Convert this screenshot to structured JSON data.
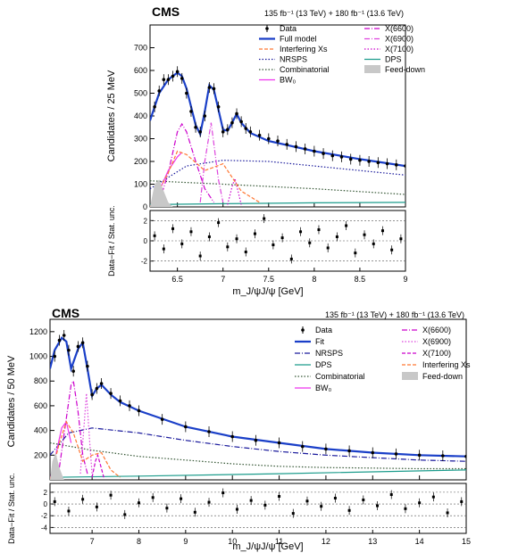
{
  "chart_data": [
    {
      "type": "line",
      "experiment": "CMS",
      "lumi_text": "135 fb⁻¹ (13 TeV) + 180 fb⁻¹ (13.6 TeV)",
      "xlabel": "m_J/ψJ/ψ [GeV]",
      "ylabel": "Candidates / 25 MeV",
      "ratio_ylabel": "Data−Fit / Stat. unc.",
      "xlim": [
        6.2,
        9.0
      ],
      "ylim": [
        0,
        800
      ],
      "xticks": [
        6.5,
        7,
        7.5,
        8,
        8.5,
        9
      ],
      "yticks": [
        0,
        100,
        200,
        300,
        400,
        500,
        600,
        700
      ],
      "ratio_ylim": [
        -3,
        3
      ],
      "ratio_yticks": [
        -2,
        0,
        2
      ],
      "legend_placement": "top-right",
      "legend": [
        {
          "label": "Data",
          "style": "marker"
        },
        {
          "label": "X(6600)",
          "style": "dashdot",
          "color": "#cc00cc"
        },
        {
          "label": "Full model",
          "style": "solid-thick",
          "color": "#1a3fc8"
        },
        {
          "label": "X(6900)",
          "style": "dashdot",
          "color": "#dd44dd"
        },
        {
          "label": "Interfering Xs",
          "style": "dashed",
          "color": "#ff7733"
        },
        {
          "label": "X(7100)",
          "style": "dotted",
          "color": "#cc00cc"
        },
        {
          "label": "NRSPS",
          "style": "dotted",
          "color": "#1a1a9c"
        },
        {
          "label": "DPS",
          "style": "solid",
          "color": "#1c9c8c"
        },
        {
          "label": "Combinatorial",
          "style": "dotted",
          "color": "#335533"
        },
        {
          "label": "Feed-down",
          "style": "fill",
          "color": "#c8c8c8"
        },
        {
          "label": "BW₀",
          "style": "solid",
          "color": "#ee33ee"
        }
      ],
      "data_x": [
        6.25,
        6.3,
        6.35,
        6.4,
        6.45,
        6.5,
        6.55,
        6.6,
        6.65,
        6.7,
        6.75,
        6.8,
        6.85,
        6.9,
        6.95,
        7.0,
        7.05,
        7.1,
        7.15,
        7.2,
        7.25,
        7.3,
        7.4,
        7.5,
        7.6,
        7.7,
        7.8,
        7.9,
        8.0,
        8.1,
        8.2,
        8.3,
        8.4,
        8.5,
        8.6,
        8.7,
        8.8,
        8.9,
        9.0
      ],
      "data_y": [
        440,
        510,
        560,
        560,
        575,
        595,
        565,
        500,
        420,
        350,
        330,
        400,
        525,
        520,
        440,
        330,
        340,
        370,
        410,
        375,
        345,
        330,
        315,
        300,
        290,
        275,
        265,
        255,
        245,
        235,
        225,
        220,
        210,
        205,
        200,
        195,
        190,
        185,
        180
      ],
      "series": [
        {
          "name": "Full model",
          "x": [
            6.2,
            6.3,
            6.4,
            6.5,
            6.55,
            6.6,
            6.7,
            6.75,
            6.8,
            6.85,
            6.9,
            7.0,
            7.05,
            7.1,
            7.15,
            7.2,
            7.3,
            7.5,
            8.0,
            8.5,
            9.0
          ],
          "y": [
            380,
            500,
            560,
            590,
            575,
            520,
            360,
            320,
            420,
            535,
            515,
            340,
            335,
            370,
            410,
            370,
            325,
            290,
            245,
            210,
            180
          ]
        },
        {
          "name": "NRSPS",
          "x": [
            6.2,
            6.6,
            7.0,
            7.5,
            8.0,
            8.5,
            9.0
          ],
          "y": [
            80,
            180,
            205,
            200,
            180,
            160,
            140
          ]
        },
        {
          "name": "Combinatorial",
          "x": [
            6.2,
            7.0,
            8.0,
            9.0
          ],
          "y": [
            115,
            100,
            80,
            55
          ]
        },
        {
          "name": "DPS",
          "x": [
            6.2,
            7.0,
            8.0,
            9.0
          ],
          "y": [
            10,
            14,
            18,
            20
          ]
        },
        {
          "name": "X(6600)",
          "x": [
            6.3,
            6.4,
            6.5,
            6.55,
            6.6,
            6.7,
            6.8,
            6.9
          ],
          "y": [
            20,
            150,
            330,
            365,
            330,
            200,
            80,
            20
          ]
        },
        {
          "name": "X(6900)",
          "x": [
            6.75,
            6.8,
            6.87,
            6.95,
            7.0
          ],
          "y": [
            20,
            200,
            370,
            120,
            20
          ]
        },
        {
          "name": "X(7100)",
          "x": [
            7.05,
            7.1,
            7.13,
            7.17,
            7.2
          ],
          "y": [
            10,
            90,
            125,
            60,
            10
          ]
        },
        {
          "name": "BW₀",
          "x": [
            6.2,
            6.3,
            6.4,
            6.5,
            6.55
          ],
          "y": [
            0,
            70,
            160,
            220,
            240
          ]
        },
        {
          "name": "Interfering Xs",
          "x": [
            6.2,
            6.4,
            6.5,
            6.6,
            6.8,
            7.0,
            7.2,
            7.4
          ],
          "y": [
            0,
            150,
            245,
            230,
            160,
            190,
            70,
            20
          ]
        },
        {
          "name": "Feed-down",
          "x": [
            6.2,
            6.25,
            6.3,
            6.35,
            6.4,
            6.45
          ],
          "y": [
            0,
            100,
            120,
            70,
            20,
            0
          ]
        }
      ],
      "ratio_x": [
        6.25,
        6.35,
        6.45,
        6.55,
        6.65,
        6.75,
        6.85,
        6.95,
        7.05,
        7.15,
        7.25,
        7.35,
        7.45,
        7.55,
        7.65,
        7.75,
        7.85,
        7.95,
        8.05,
        8.15,
        8.25,
        8.35,
        8.45,
        8.55,
        8.65,
        8.75,
        8.85,
        8.95
      ],
      "ratio_y": [
        0.5,
        -0.8,
        1.2,
        -0.3,
        0.9,
        -1.5,
        0.4,
        1.8,
        -0.6,
        0.2,
        -1.1,
        0.7,
        2.2,
        -0.4,
        0.3,
        -1.8,
        0.9,
        -0.2,
        1.1,
        -0.7,
        0.4,
        1.5,
        -1.2,
        0.6,
        -0.3,
        1.0,
        -0.9,
        0.2
      ]
    },
    {
      "type": "line",
      "experiment": "CMS",
      "lumi_text": "135 fb⁻¹ (13 TeV) + 180 fb⁻¹ (13.6 TeV)",
      "xlabel": "m_J/ψJ/ψ [GeV]",
      "ylabel": "Candidates / 50 MeV",
      "ratio_ylabel": "Data−Fit / Stat. unc.",
      "xlim": [
        6.1,
        15.0
      ],
      "ylim": [
        0,
        1300
      ],
      "xticks": [
        7,
        8,
        9,
        10,
        11,
        12,
        13,
        14,
        15
      ],
      "yticks": [
        200,
        400,
        600,
        800,
        1000,
        1200
      ],
      "ratio_ylim": [
        -5,
        3.5
      ],
      "ratio_yticks": [
        -4,
        -2,
        0,
        2
      ],
      "legend_placement": "top-right",
      "legend": [
        {
          "label": "Data",
          "style": "marker"
        },
        {
          "label": "X(6600)",
          "style": "dashdot",
          "color": "#cc00cc"
        },
        {
          "label": "Fit",
          "style": "solid-thick",
          "color": "#1a3fc8"
        },
        {
          "label": "X(6900)",
          "style": "dotted",
          "color": "#dd44dd"
        },
        {
          "label": "NRSPS",
          "style": "dashdot",
          "color": "#1a1a9c"
        },
        {
          "label": "X(7100)",
          "style": "dashed",
          "color": "#cc00cc"
        },
        {
          "label": "DPS",
          "style": "solid",
          "color": "#1c9c8c"
        },
        {
          "label": "Interfering Xs",
          "style": "dashed",
          "color": "#ff7733"
        },
        {
          "label": "Combinatorial",
          "style": "dotted",
          "color": "#335533"
        },
        {
          "label": "Feed-down",
          "style": "fill",
          "color": "#c8c8c8"
        },
        {
          "label": "BW₀",
          "style": "solid",
          "color": "#ee33ee"
        }
      ],
      "data_x": [
        6.2,
        6.3,
        6.4,
        6.5,
        6.6,
        6.7,
        6.8,
        6.9,
        7.0,
        7.1,
        7.2,
        7.4,
        7.6,
        7.8,
        8.0,
        8.5,
        9.0,
        9.5,
        10.0,
        10.5,
        11.0,
        11.5,
        12.0,
        12.5,
        13.0,
        13.5,
        14.0,
        14.5,
        15.0
      ],
      "data_y": [
        1000,
        1130,
        1170,
        1050,
        880,
        1080,
        1110,
        920,
        690,
        740,
        780,
        700,
        640,
        600,
        560,
        490,
        430,
        390,
        350,
        320,
        300,
        270,
        250,
        235,
        220,
        210,
        200,
        195,
        190
      ],
      "series": [
        {
          "name": "Fit",
          "x": [
            6.1,
            6.2,
            6.35,
            6.45,
            6.55,
            6.7,
            6.8,
            6.9,
            7.0,
            7.1,
            7.2,
            7.4,
            7.6,
            8.0,
            9.0,
            10.0,
            11.0,
            12.0,
            13.0,
            14.0,
            15.0
          ],
          "y": [
            900,
            1050,
            1150,
            1120,
            900,
            1060,
            1110,
            900,
            680,
            740,
            770,
            690,
            630,
            560,
            430,
            350,
            300,
            250,
            220,
            200,
            190
          ]
        },
        {
          "name": "NRSPS",
          "x": [
            6.1,
            6.5,
            7.0,
            8.0,
            9.0,
            10.0,
            11.0,
            12.0,
            13.0,
            14.0,
            15.0
          ],
          "y": [
            200,
            380,
            420,
            380,
            320,
            270,
            230,
            200,
            180,
            160,
            150
          ]
        },
        {
          "name": "Combinatorial",
          "x": [
            6.1,
            7.0,
            8.0,
            9.0,
            10.0,
            11.0,
            12.0,
            13.0,
            14.0,
            15.0
          ],
          "y": [
            300,
            240,
            190,
            160,
            130,
            110,
            100,
            95,
            90,
            90
          ]
        },
        {
          "name": "DPS",
          "x": [
            6.1,
            8.0,
            11.0,
            15.0
          ],
          "y": [
            20,
            30,
            50,
            80
          ]
        },
        {
          "name": "X(6600)",
          "x": [
            6.3,
            6.45,
            6.55,
            6.6,
            6.7,
            6.8,
            6.9
          ],
          "y": [
            100,
            500,
            770,
            800,
            550,
            200,
            50
          ]
        },
        {
          "name": "X(6900)",
          "x": [
            6.75,
            6.82,
            6.88,
            6.95,
            7.0
          ],
          "y": [
            50,
            400,
            700,
            300,
            50
          ]
        },
        {
          "name": "X(7100)",
          "x": [
            7.0,
            7.07,
            7.12,
            7.18,
            7.25
          ],
          "y": [
            20,
            150,
            200,
            120,
            20
          ]
        },
        {
          "name": "BW₀",
          "x": [
            6.1,
            6.25,
            6.35,
            6.45,
            6.55
          ],
          "y": [
            0,
            250,
            420,
            470,
            300
          ]
        },
        {
          "name": "Interfering Xs",
          "x": [
            6.1,
            6.3,
            6.45,
            6.6,
            6.8,
            7.0,
            7.2,
            7.4,
            7.6
          ],
          "y": [
            0,
            300,
            470,
            380,
            150,
            200,
            220,
            80,
            20
          ]
        },
        {
          "name": "Feed-down",
          "x": [
            6.1,
            6.15,
            6.22,
            6.3,
            6.4
          ],
          "y": [
            0,
            150,
            220,
            100,
            0
          ]
        }
      ],
      "ratio_x": [
        6.2,
        6.5,
        6.8,
        7.1,
        7.4,
        7.7,
        8.0,
        8.3,
        8.6,
        8.9,
        9.2,
        9.5,
        9.8,
        10.1,
        10.4,
        10.7,
        11.0,
        11.3,
        11.6,
        11.9,
        12.2,
        12.5,
        12.8,
        13.1,
        13.4,
        13.7,
        14.0,
        14.3,
        14.6,
        14.9
      ],
      "ratio_y": [
        0.4,
        -1.2,
        0.8,
        -0.5,
        1.5,
        -1.8,
        0.2,
        1.1,
        -0.7,
        0.9,
        -1.4,
        0.3,
        1.9,
        -0.9,
        0.6,
        -0.2,
        1.3,
        -1.6,
        0.5,
        -0.4,
        1.0,
        -1.1,
        0.7,
        -0.3,
        1.6,
        -0.8,
        0.2,
        1.2,
        -1.5,
        0.4
      ]
    }
  ]
}
